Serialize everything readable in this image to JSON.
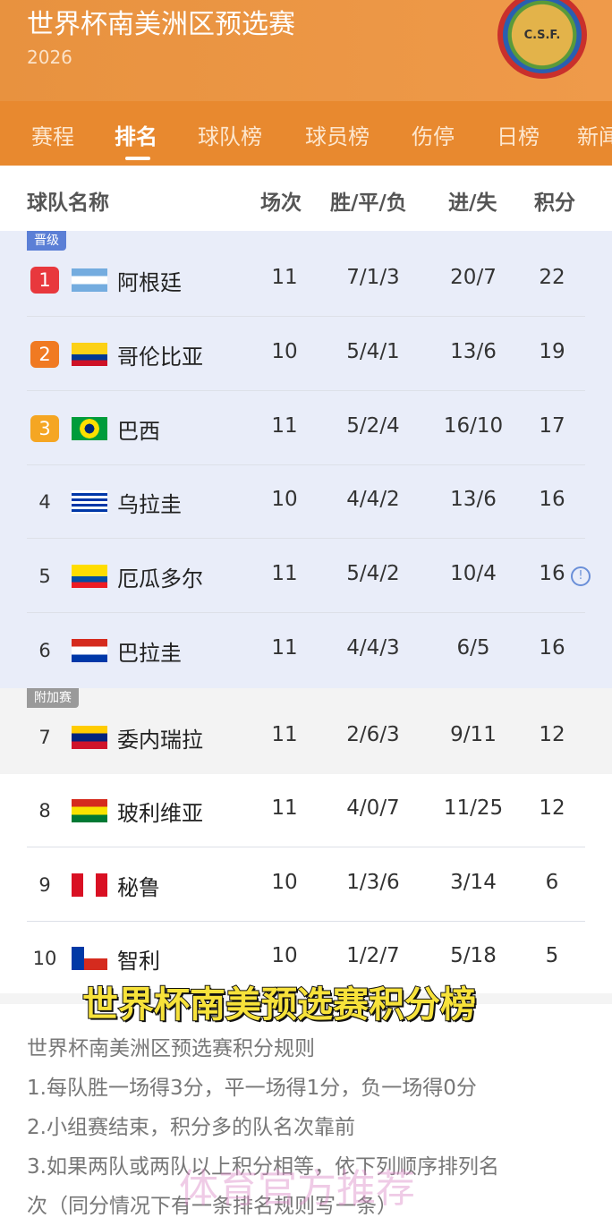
{
  "header": {
    "title": "世界杯南美洲区预选赛",
    "year": "2026",
    "logo_text": "C.S.F."
  },
  "tabs": [
    {
      "label": "赛程"
    },
    {
      "label": "排名",
      "active": true
    },
    {
      "label": "球队榜"
    },
    {
      "label": "球员榜"
    },
    {
      "label": "伤停"
    },
    {
      "label": "日榜"
    },
    {
      "label": "新闻"
    }
  ],
  "table": {
    "headers": {
      "team": "球队名称",
      "played": "场次",
      "wdl": "胜/平/负",
      "goals": "进/失",
      "points": "积分"
    },
    "zones": {
      "qualified": "晋级",
      "playoff": "附加赛"
    },
    "rows": [
      {
        "rank": "1",
        "team": "阿根廷",
        "played": "11",
        "wdl": "7/1/3",
        "goals": "20/7",
        "points": "22",
        "flag": "argentina",
        "badge_color": "#e8383d"
      },
      {
        "rank": "2",
        "team": "哥伦比亚",
        "played": "10",
        "wdl": "5/4/1",
        "goals": "13/6",
        "points": "19",
        "flag": "colombia",
        "badge_color": "#f07a22"
      },
      {
        "rank": "3",
        "team": "巴西",
        "played": "11",
        "wdl": "5/2/4",
        "goals": "16/10",
        "points": "17",
        "flag": "brazil",
        "badge_color": "#f5a623"
      },
      {
        "rank": "4",
        "team": "乌拉圭",
        "played": "10",
        "wdl": "4/4/2",
        "goals": "13/6",
        "points": "16",
        "flag": "uruguay"
      },
      {
        "rank": "5",
        "team": "厄瓜多尔",
        "played": "11",
        "wdl": "5/4/2",
        "goals": "10/4",
        "points": "16",
        "flag": "ecuador",
        "info": "!"
      },
      {
        "rank": "6",
        "team": "巴拉圭",
        "played": "11",
        "wdl": "4/4/3",
        "goals": "6/5",
        "points": "16",
        "flag": "paraguay"
      },
      {
        "rank": "7",
        "team": "委内瑞拉",
        "played": "11",
        "wdl": "2/6/3",
        "goals": "9/11",
        "points": "12",
        "flag": "venezuela"
      },
      {
        "rank": "8",
        "team": "玻利维亚",
        "played": "11",
        "wdl": "4/0/7",
        "goals": "11/25",
        "points": "12",
        "flag": "bolivia"
      },
      {
        "rank": "9",
        "team": "秘鲁",
        "played": "10",
        "wdl": "1/3/6",
        "goals": "3/14",
        "points": "6",
        "flag": "peru"
      },
      {
        "rank": "10",
        "team": "智利",
        "played": "10",
        "wdl": "1/2/7",
        "goals": "5/18",
        "points": "5",
        "flag": "chile"
      }
    ]
  },
  "caption": "世界杯南美预选赛积分榜",
  "rules": {
    "title": "世界杯南美洲区预选赛积分规则",
    "items": [
      "1.每队胜一场得3分，平一场得1分，负一场得0分",
      "2.小组赛结束，积分多的队名次靠前",
      "3.如果两队或两队以上积分相等，依下列顺序排列名",
      "次（同分情况下有一条排名规则写一条）"
    ]
  },
  "watermark": "体育官方推荐"
}
